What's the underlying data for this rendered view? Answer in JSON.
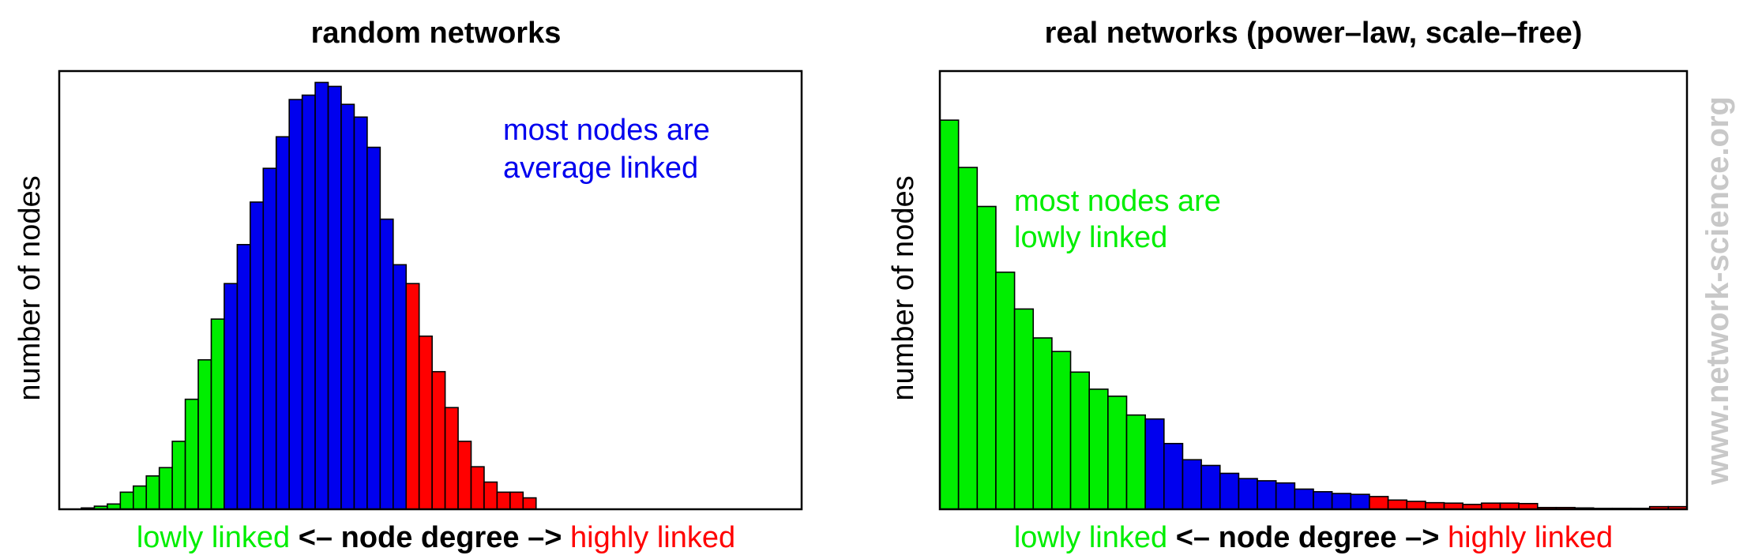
{
  "colors": {
    "low": "#00ee00",
    "mid": "#0000ee",
    "high": "#ff0000",
    "watermark": "#c8c8c8"
  },
  "watermark": "www.network-science.org",
  "chart_data": [
    {
      "type": "bar",
      "title": "random networks",
      "ylabel": "number of nodes",
      "ylim": [
        0,
        100
      ],
      "grid": false,
      "x": [
        1,
        2,
        3,
        4,
        5,
        6,
        7,
        8,
        9,
        10,
        11,
        12,
        13,
        14,
        15,
        16,
        17,
        18,
        19,
        20,
        21,
        22,
        23,
        24,
        25,
        26,
        27,
        28,
        29,
        30,
        31,
        32,
        33,
        34,
        35
      ],
      "values": [
        0.3,
        0.7,
        1.2,
        3.9,
        5.3,
        7.6,
        9.5,
        15.5,
        25.1,
        34.1,
        43.4,
        51.5,
        60.4,
        70.1,
        77.8,
        85.0,
        93.5,
        94.5,
        97.4,
        96.5,
        92.4,
        89.5,
        82.6,
        66.2,
        55.8,
        51.5,
        39.5,
        31.4,
        23.2,
        15.5,
        9.7,
        6.2,
        3.9,
        3.9,
        2.6
      ],
      "colors": [
        "low",
        "low",
        "low",
        "low",
        "low",
        "low",
        "low",
        "low",
        "low",
        "low",
        "low",
        "mid",
        "mid",
        "mid",
        "mid",
        "mid",
        "mid",
        "mid",
        "mid",
        "mid",
        "mid",
        "mid",
        "mid",
        "mid",
        "mid",
        "high",
        "high",
        "high",
        "high",
        "high",
        "high",
        "high",
        "high",
        "high",
        "high"
      ],
      "annotation": {
        "lines": [
          "most nodes are",
          "average linked"
        ],
        "color": "mid"
      },
      "xlabel": {
        "left": "lowly linked",
        "center": "<– node degree –>",
        "right": "highly linked"
      }
    },
    {
      "type": "bar",
      "title": "real networks (power–law, scale–free)",
      "ylabel": "number of nodes",
      "ylim": [
        0,
        100
      ],
      "grid": false,
      "x": [
        1,
        2,
        3,
        4,
        5,
        6,
        7,
        8,
        9,
        10,
        11,
        12,
        13,
        14,
        15,
        16,
        17,
        18,
        19,
        20,
        21,
        22,
        23,
        24,
        25,
        26,
        27,
        28,
        29,
        30,
        31,
        32,
        33,
        34,
        35,
        36,
        37,
        38,
        39,
        40
      ],
      "values": [
        88.8,
        78.0,
        69.1,
        54.1,
        45.7,
        39.1,
        36.0,
        31.3,
        27.4,
        25.8,
        21.5,
        20.6,
        15.0,
        11.3,
        10.0,
        8.2,
        7.0,
        6.5,
        6.0,
        4.6,
        4.0,
        3.6,
        3.4,
        2.9,
        2.1,
        1.8,
        1.5,
        1.4,
        1.1,
        1.4,
        1.4,
        1.3,
        0.4,
        0.4,
        0.3,
        0.2,
        0.2,
        0.2,
        0.6,
        0.6
      ],
      "colors": [
        "low",
        "low",
        "low",
        "low",
        "low",
        "low",
        "low",
        "low",
        "low",
        "low",
        "low",
        "mid",
        "mid",
        "mid",
        "mid",
        "mid",
        "mid",
        "mid",
        "mid",
        "mid",
        "mid",
        "mid",
        "mid",
        "high",
        "high",
        "high",
        "high",
        "high",
        "high",
        "high",
        "high",
        "high",
        "high",
        "high",
        "high",
        "high",
        "high",
        "high",
        "high",
        "high"
      ],
      "annotation": {
        "lines": [
          "most nodes are",
          "lowly linked"
        ],
        "color": "low"
      },
      "xlabel": {
        "left": "lowly linked",
        "center": "<– node degree –>",
        "right": "highly linked"
      }
    }
  ]
}
